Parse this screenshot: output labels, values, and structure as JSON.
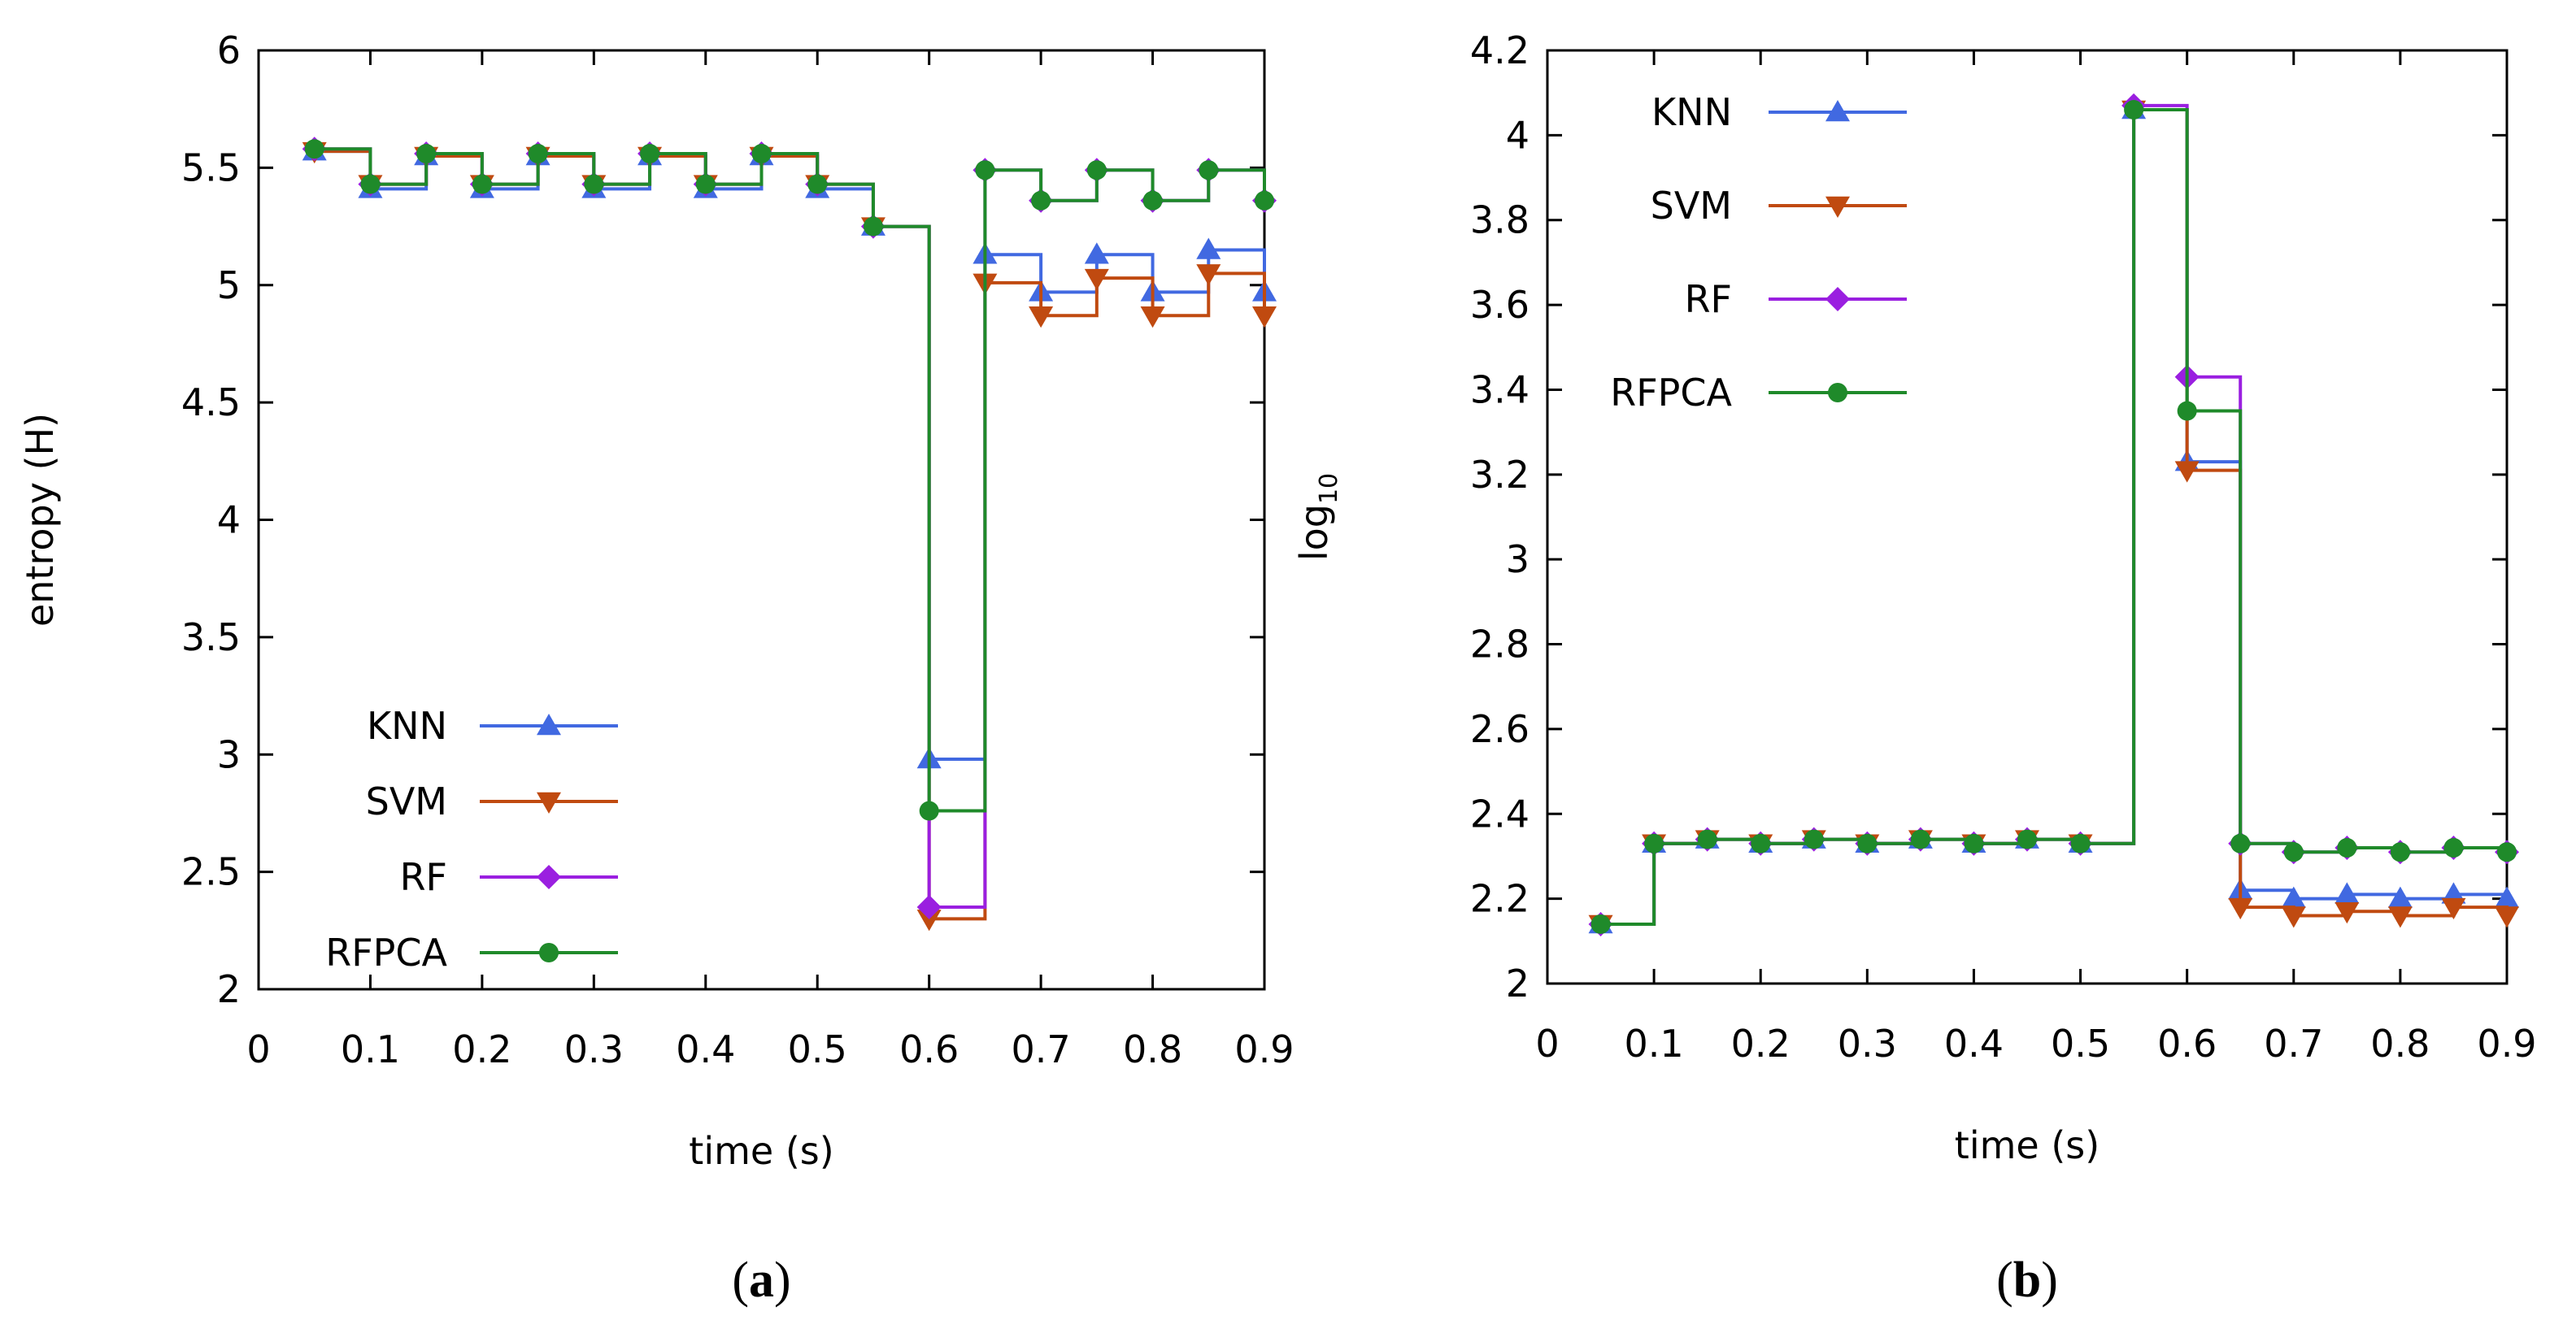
{
  "chart_data": [
    {
      "type": "line",
      "caption": "(a)",
      "title": "",
      "xlabel": "time (s)",
      "ylabel": "entropy (H)",
      "xlim": [
        0,
        0.9
      ],
      "ylim": [
        2,
        6
      ],
      "xticks": [
        "0",
        "0.1",
        "0.2",
        "0.3",
        "0.4",
        "0.5",
        "0.6",
        "0.7",
        "0.8",
        "0.9"
      ],
      "yticks": [
        "2",
        "2.5",
        "3",
        "3.5",
        "4",
        "4.5",
        "5",
        "5.5",
        "6"
      ],
      "legend_position": "bottom-left",
      "x": [
        0.05,
        0.1,
        0.15,
        0.2,
        0.25,
        0.3,
        0.35,
        0.4,
        0.45,
        0.5,
        0.55,
        0.6,
        0.65,
        0.7,
        0.75,
        0.8,
        0.85,
        0.9
      ],
      "series": [
        {
          "name": "KNN",
          "color": "#4169e1",
          "marker": "triangle-up",
          "values": [
            5.57,
            5.41,
            5.55,
            5.41,
            5.55,
            5.41,
            5.55,
            5.41,
            5.55,
            5.41,
            5.25,
            2.98,
            5.13,
            4.97,
            5.13,
            4.97,
            5.15,
            4.97
          ]
        },
        {
          "name": "SVM",
          "color": "#c04a10",
          "marker": "triangle-down",
          "values": [
            5.57,
            5.43,
            5.55,
            5.43,
            5.55,
            5.43,
            5.55,
            5.43,
            5.55,
            5.43,
            5.25,
            2.3,
            5.01,
            4.87,
            5.03,
            4.87,
            5.05,
            4.87
          ]
        },
        {
          "name": "RF",
          "color": "#9a1fe0",
          "marker": "diamond",
          "values": [
            5.58,
            5.43,
            5.56,
            5.43,
            5.56,
            5.43,
            5.56,
            5.43,
            5.56,
            5.43,
            5.25,
            2.35,
            5.49,
            5.36,
            5.49,
            5.36,
            5.49,
            5.36
          ]
        },
        {
          "name": "RFPCA",
          "color": "#1f8a2a",
          "marker": "circle",
          "values": [
            5.58,
            5.43,
            5.56,
            5.43,
            5.56,
            5.43,
            5.56,
            5.43,
            5.56,
            5.43,
            5.25,
            2.76,
            5.49,
            5.36,
            5.49,
            5.36,
            5.49,
            5.36
          ]
        }
      ]
    },
    {
      "type": "line",
      "caption": "(b)",
      "title": "",
      "xlabel": "time (s)",
      "ylabel": "log",
      "ylabel_subscript": "10",
      "xlim": [
        0,
        0.9
      ],
      "ylim": [
        2,
        4.2
      ],
      "xticks": [
        "0",
        "0.1",
        "0.2",
        "0.3",
        "0.4",
        "0.5",
        "0.6",
        "0.7",
        "0.8",
        "0.9"
      ],
      "yticks": [
        "2",
        "2.2",
        "2.4",
        "2.6",
        "2.8",
        "3",
        "3.2",
        "3.4",
        "3.6",
        "3.8",
        "4",
        "4.2"
      ],
      "legend_position": "top-left",
      "x": [
        0.05,
        0.1,
        0.15,
        0.2,
        0.25,
        0.3,
        0.35,
        0.4,
        0.45,
        0.5,
        0.55,
        0.6,
        0.65,
        0.7,
        0.75,
        0.8,
        0.85,
        0.9
      ],
      "series": [
        {
          "name": "KNN",
          "color": "#4169e1",
          "marker": "triangle-up",
          "values": [
            2.14,
            2.33,
            2.34,
            2.33,
            2.34,
            2.33,
            2.34,
            2.33,
            2.34,
            2.33,
            4.06,
            3.23,
            2.22,
            2.2,
            2.21,
            2.2,
            2.21,
            2.2
          ]
        },
        {
          "name": "SVM",
          "color": "#c04a10",
          "marker": "triangle-down",
          "values": [
            2.14,
            2.33,
            2.34,
            2.33,
            2.34,
            2.33,
            2.34,
            2.33,
            2.34,
            2.33,
            4.06,
            3.21,
            2.18,
            2.16,
            2.17,
            2.16,
            2.18,
            2.16
          ]
        },
        {
          "name": "RF",
          "color": "#9a1fe0",
          "marker": "diamond",
          "values": [
            2.14,
            2.33,
            2.34,
            2.33,
            2.34,
            2.33,
            2.34,
            2.33,
            2.34,
            2.33,
            4.07,
            3.43,
            2.33,
            2.31,
            2.32,
            2.31,
            2.32,
            2.31
          ]
        },
        {
          "name": "RFPCA",
          "color": "#1f8a2a",
          "marker": "circle",
          "values": [
            2.14,
            2.33,
            2.34,
            2.33,
            2.34,
            2.33,
            2.34,
            2.33,
            2.34,
            2.33,
            4.06,
            3.35,
            2.33,
            2.31,
            2.32,
            2.31,
            2.32,
            2.31
          ]
        }
      ]
    }
  ]
}
